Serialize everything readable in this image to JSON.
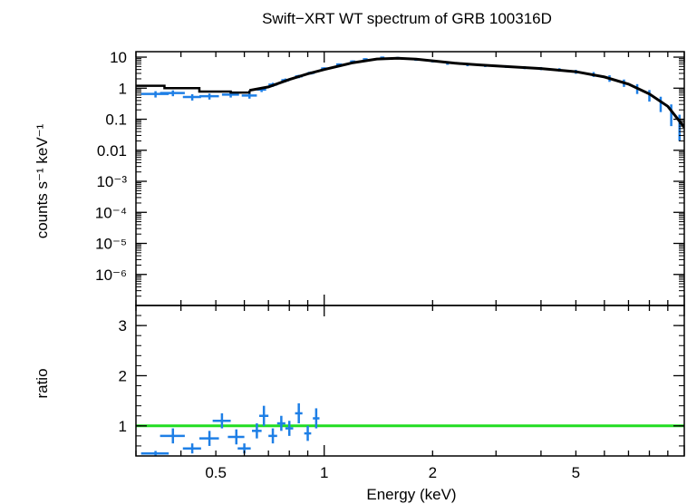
{
  "chart_data": {
    "type": "scatter",
    "title": "Swift−XRT WT spectrum of GRB 100316D",
    "xlabel": "Energy (keV)",
    "x_scale": "log",
    "xlim": [
      0.3,
      10
    ],
    "x_ticks": [
      {
        "value": 0.5,
        "label": "0.5"
      },
      {
        "value": 1,
        "label": "1"
      },
      {
        "value": 2,
        "label": "2"
      },
      {
        "value": 5,
        "label": "5"
      }
    ],
    "panels": [
      {
        "name": "spectrum",
        "ylabel": "counts s⁻¹ keV⁻¹",
        "y_scale": "log",
        "ylim": [
          1e-07,
          15
        ],
        "y_ticks": [
          {
            "value": 10,
            "label": "10"
          },
          {
            "value": 1,
            "label": "1"
          },
          {
            "value": 0.1,
            "label": "0.1"
          },
          {
            "value": 0.01,
            "label": "0.01"
          },
          {
            "value": 0.001,
            "label": "10⁻³"
          },
          {
            "value": 0.0001,
            "label": "10⁻⁴"
          },
          {
            "value": 1e-05,
            "label": "10⁻⁵"
          },
          {
            "value": 1e-06,
            "label": "10⁻⁶"
          }
        ],
        "series": [
          {
            "kind": "data",
            "color": "#1e7fe6",
            "points": [
              [
                0.34,
                0.65,
                0.03,
                0.15
              ],
              [
                0.38,
                0.7,
                0.03,
                0.15
              ],
              [
                0.43,
                0.52,
                0.025,
                0.12
              ],
              [
                0.48,
                0.55,
                0.03,
                0.12
              ],
              [
                0.55,
                0.62,
                0.03,
                0.12
              ],
              [
                0.62,
                0.58,
                0.03,
                0.12
              ],
              [
                0.67,
                0.9,
                0.02,
                0.15
              ],
              [
                0.72,
                1.3,
                0.02,
                0.2
              ],
              [
                0.78,
                1.8,
                0.02,
                0.25
              ],
              [
                0.85,
                2.4,
                0.02,
                0.3
              ],
              [
                0.92,
                3.1,
                0.02,
                0.35
              ],
              [
                1.0,
                4.3,
                0.02,
                0.4
              ],
              [
                1.1,
                5.8,
                0.02,
                0.5
              ],
              [
                1.2,
                7.2,
                0.02,
                0.6
              ],
              [
                1.3,
                8.5,
                0.02,
                0.7
              ],
              [
                1.45,
                9.6,
                0.02,
                0.8
              ],
              [
                1.6,
                9.3,
                0.02,
                0.8
              ],
              [
                1.8,
                8.3,
                0.02,
                0.7
              ],
              [
                2.0,
                7.4,
                0.02,
                0.6
              ],
              [
                2.2,
                6.2,
                0.02,
                0.5
              ],
              [
                2.5,
                5.6,
                0.02,
                0.5
              ],
              [
                2.8,
                5.3,
                0.02,
                0.5
              ],
              [
                3.2,
                5.0,
                0.03,
                0.5
              ],
              [
                3.6,
                4.6,
                0.03,
                0.5
              ],
              [
                4.0,
                4.3,
                0.03,
                0.5
              ],
              [
                4.5,
                3.9,
                0.03,
                0.5
              ],
              [
                5.0,
                3.4,
                0.03,
                0.5
              ],
              [
                5.6,
                2.8,
                0.03,
                0.5
              ],
              [
                6.2,
                2.1,
                0.03,
                0.5
              ],
              [
                6.8,
                1.5,
                0.03,
                0.4
              ],
              [
                7.4,
                1.0,
                0.03,
                0.35
              ],
              [
                8.0,
                0.62,
                0.03,
                0.25
              ],
              [
                8.6,
                0.35,
                0.03,
                0.18
              ],
              [
                9.2,
                0.18,
                0.03,
                0.12
              ],
              [
                9.7,
                0.08,
                0.02,
                0.06
              ]
            ]
          },
          {
            "kind": "model",
            "color": "#000000",
            "step_points": [
              [
                0.3,
                1.2
              ],
              [
                0.36,
                1.0
              ],
              [
                0.45,
                0.78
              ],
              [
                0.55,
                0.72
              ],
              [
                0.62,
                0.85
              ]
            ],
            "curve_points": [
              [
                0.62,
                0.85
              ],
              [
                0.7,
                1.1
              ],
              [
                0.8,
                1.9
              ],
              [
                0.9,
                2.9
              ],
              [
                1.0,
                4.0
              ],
              [
                1.2,
                6.6
              ],
              [
                1.4,
                8.7
              ],
              [
                1.6,
                9.2
              ],
              [
                1.8,
                8.6
              ],
              [
                2.0,
                7.6
              ],
              [
                2.3,
                6.4
              ],
              [
                2.7,
                5.6
              ],
              [
                3.2,
                5.0
              ],
              [
                4.0,
                4.3
              ],
              [
                5.0,
                3.4
              ],
              [
                6.0,
                2.3
              ],
              [
                7.0,
                1.35
              ],
              [
                8.0,
                0.65
              ],
              [
                9.0,
                0.26
              ],
              [
                10.0,
                0.055
              ]
            ]
          }
        ]
      },
      {
        "name": "ratio",
        "ylabel": "ratio",
        "y_scale": "linear",
        "ylim": [
          0.4,
          3.4
        ],
        "y_ticks": [
          {
            "value": 1,
            "label": "1"
          },
          {
            "value": 2,
            "label": "2"
          },
          {
            "value": 3,
            "label": "3"
          }
        ],
        "reference_line": {
          "value": 1,
          "color": "#22dd22"
        },
        "series": [
          {
            "kind": "ratio",
            "color": "#1e7fe6",
            "points": [
              [
                0.34,
                0.45,
                0.03,
                0.05
              ],
              [
                0.38,
                0.8,
                0.03,
                0.15
              ],
              [
                0.43,
                0.55,
                0.025,
                0.1
              ],
              [
                0.48,
                0.75,
                0.03,
                0.15
              ],
              [
                0.52,
                1.1,
                0.03,
                0.15
              ],
              [
                0.57,
                0.78,
                0.03,
                0.15
              ],
              [
                0.6,
                0.55,
                0.025,
                0.1
              ],
              [
                0.65,
                0.9,
                0.02,
                0.15
              ],
              [
                0.68,
                1.2,
                0.02,
                0.2
              ],
              [
                0.72,
                0.8,
                0.02,
                0.15
              ],
              [
                0.76,
                1.05,
                0.02,
                0.15
              ],
              [
                0.8,
                0.95,
                0.02,
                0.15
              ],
              [
                0.85,
                1.25,
                0.02,
                0.2
              ],
              [
                0.9,
                0.85,
                0.02,
                0.15
              ],
              [
                0.95,
                1.15,
                0.02,
                0.2
              ]
            ]
          }
        ]
      }
    ]
  }
}
